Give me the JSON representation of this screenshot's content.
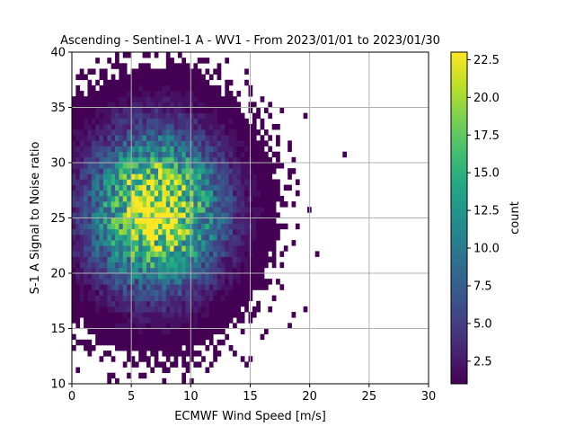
{
  "chart_data": {
    "type": "heatmap",
    "title": "Ascending - Sentinel-1 A - WV1 - From 2023/01/01 to 2023/01/30",
    "xlabel": "ECMWF Wind Speed [m/s]",
    "ylabel": "S-1 A Signal to Noise ratio",
    "xlim": [
      0,
      30
    ],
    "ylim": [
      10,
      40
    ],
    "xticks": [
      0,
      5,
      10,
      15,
      20,
      25,
      30
    ],
    "xtick_labels": [
      "0",
      "5",
      "10",
      "15",
      "20",
      "25",
      "30"
    ],
    "yticks": [
      10,
      15,
      20,
      25,
      30,
      35,
      40
    ],
    "ytick_labels": [
      "10",
      "15",
      "20",
      "25",
      "30",
      "35",
      "40"
    ],
    "grid": true,
    "colormap": "viridis",
    "colorbar": {
      "label": "count",
      "range": [
        1,
        23
      ],
      "ticks": [
        2.5,
        5.0,
        7.5,
        10.0,
        12.5,
        15.0,
        17.5,
        20.0,
        22.5
      ],
      "tick_labels": [
        "2.5",
        "5.0",
        "7.5",
        "10.0",
        "12.5",
        "15.0",
        "17.5",
        "20.0",
        "22.5"
      ]
    },
    "bin_width_x": 0.33,
    "bin_width_y": 0.5,
    "distribution": {
      "peak_x": 7.1,
      "peak_y": 25.7,
      "max_count": 23,
      "x_extent": [
        0.5,
        23.7
      ],
      "y_extent": [
        10.0,
        39.7
      ]
    }
  }
}
